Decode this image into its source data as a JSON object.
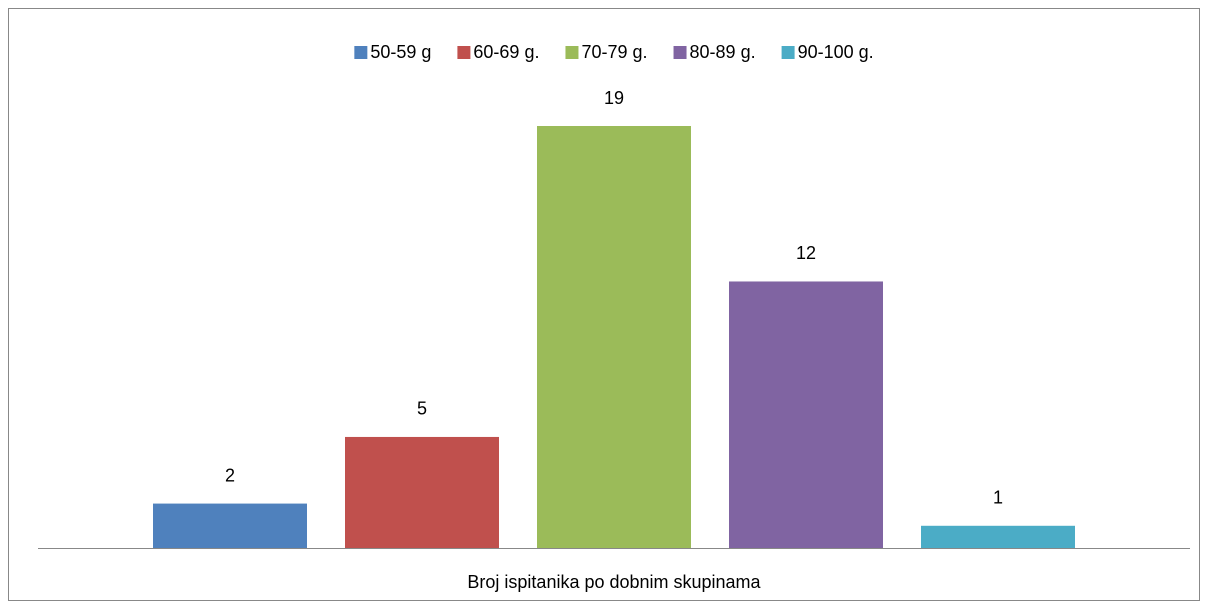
{
  "chart_data": {
    "type": "bar",
    "categories": [
      "Broj ispitanika po dobnim skupinama"
    ],
    "series": [
      {
        "name": "50-59 g",
        "color": "#4f81bd",
        "values": [
          2
        ]
      },
      {
        "name": "60-69 g.",
        "color": "#c0504d",
        "values": [
          5
        ]
      },
      {
        "name": "70-79 g.",
        "color": "#9bbb59",
        "values": [
          19
        ]
      },
      {
        "name": "80-89 g.",
        "color": "#8064a2",
        "values": [
          12
        ]
      },
      {
        "name": "90-100 g.",
        "color": "#4bacc6",
        "values": [
          1
        ]
      }
    ],
    "legend": "top"
  }
}
